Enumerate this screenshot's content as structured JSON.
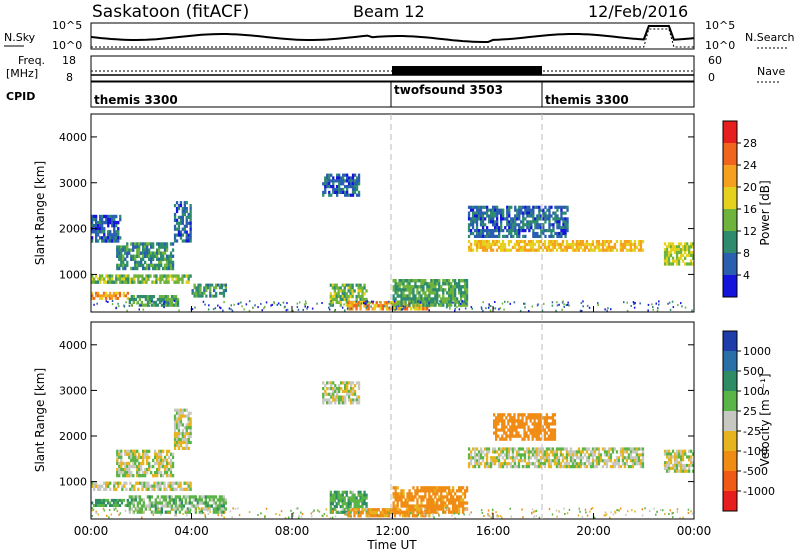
{
  "header": {
    "station": "Saskatoon (fitACF)",
    "beam": "Beam 12",
    "date": "12/Feb/2016"
  },
  "noise_panel": {
    "left_label": "N.Sky",
    "right_label": "N.Search",
    "tick_top_left": "10^5",
    "tick_bottom_left": "10^0",
    "tick_top_right": "10^5",
    "tick_bottom_right": "10^0"
  },
  "freq_panel": {
    "left_label_1": "Freq.",
    "left_label_2": "[MHz]",
    "tick_top_left": "18",
    "tick_bottom_left": "8",
    "tick_top_right": "60",
    "tick_bottom_right": "0",
    "right_label": "Nave"
  },
  "cpid_panel": {
    "label": "CPID",
    "segments": [
      "themis 3300",
      "twofsound 3503",
      "themis 3300"
    ]
  },
  "axes": {
    "ylabel": "Slant Range [km]",
    "xlabel": "Time UT",
    "yticks": [
      "1000",
      "2000",
      "3000",
      "4000"
    ],
    "xticks": [
      "00:00",
      "04:00",
      "08:00",
      "12:00",
      "16:00",
      "20:00",
      "00:00"
    ]
  },
  "colorbars": {
    "power": {
      "label": "Power [dB]",
      "ticks": [
        "4",
        "8",
        "12",
        "16",
        "20",
        "24",
        "28"
      ],
      "colors": [
        "#1414dc",
        "#2a5fb0",
        "#2f8b6e",
        "#6eb43c",
        "#e6d21e",
        "#f5a01e",
        "#f0641e",
        "#e61e1e"
      ]
    },
    "velocity": {
      "label": "Velocity [m s⁻¹]",
      "ticks": [
        "1000",
        "500",
        "100",
        "25",
        "-25",
        "-100",
        "-500",
        "-1000"
      ],
      "colors": [
        "#1e3caa",
        "#2a70a8",
        "#2e8c64",
        "#5ab446",
        "#c8c8c3",
        "#e6b41e",
        "#f08c14",
        "#f05a14",
        "#e61e1e"
      ]
    }
  },
  "chart_data": [
    {
      "type": "heatmap",
      "name": "power",
      "x_range_hours": [
        0,
        24
      ],
      "y_range_km": [
        180,
        4500
      ],
      "regions": [
        {
          "t": [
            0.0,
            4.0
          ],
          "r": [
            800,
            1000
          ],
          "v": 14
        },
        {
          "t": [
            1.0,
            3.3
          ],
          "r": [
            1100,
            1700
          ],
          "v": 10
        },
        {
          "t": [
            3.3,
            4.0
          ],
          "r": [
            1700,
            2600
          ],
          "v": 7
        },
        {
          "t": [
            0.0,
            1.2
          ],
          "r": [
            1700,
            2300
          ],
          "v": 6
        },
        {
          "t": [
            0.0,
            1.5
          ],
          "r": [
            450,
            620
          ],
          "v": 22
        },
        {
          "t": [
            1.5,
            3.5
          ],
          "r": [
            300,
            550
          ],
          "v": 12
        },
        {
          "t": [
            4.0,
            5.4
          ],
          "r": [
            500,
            800
          ],
          "v": 10
        },
        {
          "t": [
            9.2,
            10.7
          ],
          "r": [
            2700,
            3200
          ],
          "v": 6
        },
        {
          "t": [
            9.5,
            11.0
          ],
          "r": [
            300,
            800
          ],
          "v": 14
        },
        {
          "t": [
            10.2,
            13.5
          ],
          "r": [
            220,
            420
          ],
          "v": 22
        },
        {
          "t": [
            12.0,
            15.0
          ],
          "r": [
            300,
            900
          ],
          "v": 12
        },
        {
          "t": [
            15.0,
            22.0
          ],
          "r": [
            1500,
            1750
          ],
          "v": 20
        },
        {
          "t": [
            15.0,
            19.0
          ],
          "r": [
            1800,
            2500
          ],
          "v": 7
        },
        {
          "t": [
            22.8,
            24.0
          ],
          "r": [
            1200,
            1700
          ],
          "v": 16
        }
      ]
    },
    {
      "type": "heatmap",
      "name": "velocity",
      "x_range_hours": [
        0,
        24
      ],
      "y_range_km": [
        180,
        4500
      ],
      "regions": [
        {
          "t": [
            0.0,
            4.0
          ],
          "r": [
            800,
            1000
          ],
          "v": 0
        },
        {
          "t": [
            1.0,
            3.3
          ],
          "r": [
            1100,
            1700
          ],
          "v": 0
        },
        {
          "t": [
            3.3,
            4.0
          ],
          "r": [
            1700,
            2600
          ],
          "v": 0
        },
        {
          "t": [
            0.0,
            1.5
          ],
          "r": [
            450,
            620
          ],
          "v": 110
        },
        {
          "t": [
            1.5,
            5.4
          ],
          "r": [
            300,
            700
          ],
          "v": 60
        },
        {
          "t": [
            9.2,
            10.7
          ],
          "r": [
            2700,
            3200
          ],
          "v": 0
        },
        {
          "t": [
            9.5,
            11.0
          ],
          "r": [
            300,
            800
          ],
          "v": 80
        },
        {
          "t": [
            10.2,
            13.5
          ],
          "r": [
            220,
            420
          ],
          "v": -120
        },
        {
          "t": [
            12.0,
            15.0
          ],
          "r": [
            300,
            900
          ],
          "v": -150
        },
        {
          "t": [
            15.0,
            22.0
          ],
          "r": [
            1300,
            1750
          ],
          "v": 0
        },
        {
          "t": [
            16.0,
            18.5
          ],
          "r": [
            1900,
            2500
          ],
          "v": -200
        },
        {
          "t": [
            22.8,
            24.0
          ],
          "r": [
            1200,
            1700
          ],
          "v": 0
        }
      ]
    }
  ]
}
